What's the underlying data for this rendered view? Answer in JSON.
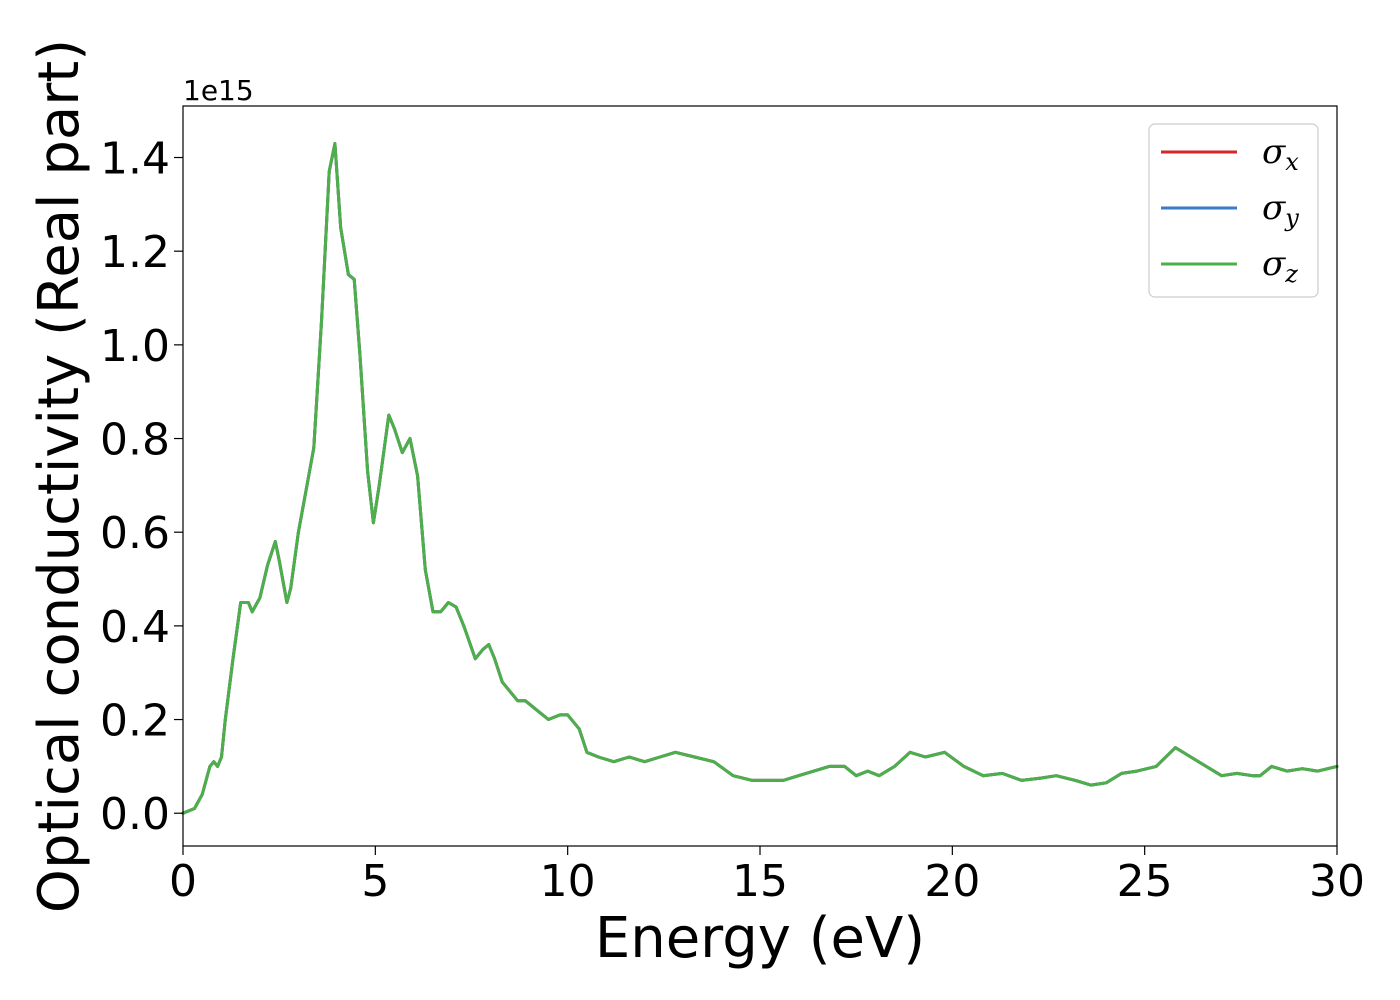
{
  "chart_data": {
    "type": "line",
    "title": "",
    "xlabel": "Energy (eV)",
    "ylabel": "Optical conductivity (Real part)",
    "y_offset_text": "1e15",
    "xlim": [
      0,
      30
    ],
    "ylim": [
      -0.07,
      1.51
    ],
    "xticks": [
      0,
      5,
      10,
      15,
      20,
      25,
      30
    ],
    "xtick_labels": [
      "0",
      "5",
      "10",
      "15",
      "20",
      "25",
      "30"
    ],
    "yticks": [
      0.0,
      0.2,
      0.4,
      0.6,
      0.8,
      1.0,
      1.2,
      1.4
    ],
    "ytick_labels": [
      "0.0",
      "0.2",
      "0.4",
      "0.6",
      "0.8",
      "1.0",
      "1.2",
      "1.4"
    ],
    "grid": false,
    "legend_position": "top-right",
    "x": [
      0,
      0.3,
      0.5,
      0.7,
      0.8,
      0.9,
      1.0,
      1.1,
      1.3,
      1.5,
      1.7,
      1.8,
      2.0,
      2.2,
      2.4,
      2.5,
      2.7,
      2.8,
      3.0,
      3.2,
      3.4,
      3.6,
      3.8,
      3.95,
      4.1,
      4.3,
      4.45,
      4.6,
      4.8,
      4.95,
      5.1,
      5.35,
      5.5,
      5.7,
      5.9,
      6.1,
      6.3,
      6.5,
      6.7,
      6.9,
      7.1,
      7.3,
      7.6,
      7.8,
      7.95,
      8.1,
      8.3,
      8.5,
      8.7,
      8.9,
      9.2,
      9.5,
      9.8,
      10.0,
      10.3,
      10.5,
      10.8,
      11.2,
      11.6,
      12.0,
      12.4,
      12.8,
      13.3,
      13.8,
      14.3,
      14.8,
      15.2,
      15.6,
      16.0,
      16.4,
      16.8,
      17.2,
      17.5,
      17.8,
      18.1,
      18.5,
      18.9,
      19.3,
      19.8,
      20.3,
      20.8,
      21.3,
      21.8,
      22.3,
      22.7,
      23.2,
      23.6,
      24.0,
      24.4,
      24.8,
      25.3,
      25.8,
      26.2,
      26.6,
      27.0,
      27.4,
      27.8,
      28.0,
      28.3,
      28.7,
      29.1,
      29.5,
      30.0
    ],
    "series": [
      {
        "name": "σx",
        "color": "#d62728",
        "values": [
          0.0,
          0.01,
          0.04,
          0.1,
          0.11,
          0.1,
          0.12,
          0.2,
          0.33,
          0.45,
          0.45,
          0.43,
          0.46,
          0.53,
          0.58,
          0.54,
          0.45,
          0.48,
          0.6,
          0.69,
          0.78,
          1.05,
          1.37,
          1.43,
          1.25,
          1.15,
          1.14,
          0.98,
          0.73,
          0.62,
          0.7,
          0.85,
          0.82,
          0.77,
          0.8,
          0.72,
          0.52,
          0.43,
          0.43,
          0.45,
          0.44,
          0.4,
          0.33,
          0.35,
          0.36,
          0.33,
          0.28,
          0.26,
          0.24,
          0.24,
          0.22,
          0.2,
          0.21,
          0.21,
          0.18,
          0.13,
          0.12,
          0.11,
          0.12,
          0.11,
          0.12,
          0.13,
          0.12,
          0.11,
          0.08,
          0.07,
          0.07,
          0.07,
          0.08,
          0.09,
          0.1,
          0.1,
          0.08,
          0.09,
          0.08,
          0.1,
          0.13,
          0.12,
          0.13,
          0.1,
          0.08,
          0.085,
          0.07,
          0.075,
          0.08,
          0.07,
          0.06,
          0.065,
          0.085,
          0.09,
          0.1,
          0.14,
          0.12,
          0.1,
          0.08,
          0.085,
          0.08,
          0.08,
          0.1,
          0.09,
          0.095,
          0.09,
          0.1
        ]
      },
      {
        "name": "σy",
        "color": "#3a7bc8",
        "values": [
          0.0,
          0.01,
          0.04,
          0.1,
          0.11,
          0.1,
          0.12,
          0.2,
          0.33,
          0.45,
          0.45,
          0.43,
          0.46,
          0.53,
          0.58,
          0.54,
          0.45,
          0.48,
          0.6,
          0.69,
          0.78,
          1.05,
          1.37,
          1.43,
          1.25,
          1.15,
          1.14,
          0.98,
          0.73,
          0.62,
          0.7,
          0.85,
          0.82,
          0.77,
          0.8,
          0.72,
          0.52,
          0.43,
          0.43,
          0.45,
          0.44,
          0.4,
          0.33,
          0.35,
          0.36,
          0.33,
          0.28,
          0.26,
          0.24,
          0.24,
          0.22,
          0.2,
          0.21,
          0.21,
          0.18,
          0.13,
          0.12,
          0.11,
          0.12,
          0.11,
          0.12,
          0.13,
          0.12,
          0.11,
          0.08,
          0.07,
          0.07,
          0.07,
          0.08,
          0.09,
          0.1,
          0.1,
          0.08,
          0.09,
          0.08,
          0.1,
          0.13,
          0.12,
          0.13,
          0.1,
          0.08,
          0.085,
          0.07,
          0.075,
          0.08,
          0.07,
          0.06,
          0.065,
          0.085,
          0.09,
          0.1,
          0.14,
          0.12,
          0.1,
          0.08,
          0.085,
          0.08,
          0.08,
          0.1,
          0.09,
          0.095,
          0.09,
          0.1
        ]
      },
      {
        "name": "σz",
        "color": "#4daf4a",
        "values": [
          0.0,
          0.01,
          0.04,
          0.1,
          0.11,
          0.1,
          0.12,
          0.2,
          0.33,
          0.45,
          0.45,
          0.43,
          0.46,
          0.53,
          0.58,
          0.54,
          0.45,
          0.48,
          0.6,
          0.69,
          0.78,
          1.05,
          1.37,
          1.43,
          1.25,
          1.15,
          1.14,
          0.98,
          0.73,
          0.62,
          0.7,
          0.85,
          0.82,
          0.77,
          0.8,
          0.72,
          0.52,
          0.43,
          0.43,
          0.45,
          0.44,
          0.4,
          0.33,
          0.35,
          0.36,
          0.33,
          0.28,
          0.26,
          0.24,
          0.24,
          0.22,
          0.2,
          0.21,
          0.21,
          0.18,
          0.13,
          0.12,
          0.11,
          0.12,
          0.11,
          0.12,
          0.13,
          0.12,
          0.11,
          0.08,
          0.07,
          0.07,
          0.07,
          0.08,
          0.09,
          0.1,
          0.1,
          0.08,
          0.09,
          0.08,
          0.1,
          0.13,
          0.12,
          0.13,
          0.1,
          0.08,
          0.085,
          0.07,
          0.075,
          0.08,
          0.07,
          0.06,
          0.065,
          0.085,
          0.09,
          0.1,
          0.14,
          0.12,
          0.1,
          0.08,
          0.085,
          0.08,
          0.08,
          0.1,
          0.09,
          0.095,
          0.09,
          0.1
        ]
      }
    ],
    "legend": [
      {
        "symbol": "σ",
        "sub": "x",
        "color": "#d62728"
      },
      {
        "symbol": "σ",
        "sub": "y",
        "color": "#3a7bc8"
      },
      {
        "symbol": "σ",
        "sub": "z",
        "color": "#4daf4a"
      }
    ]
  }
}
